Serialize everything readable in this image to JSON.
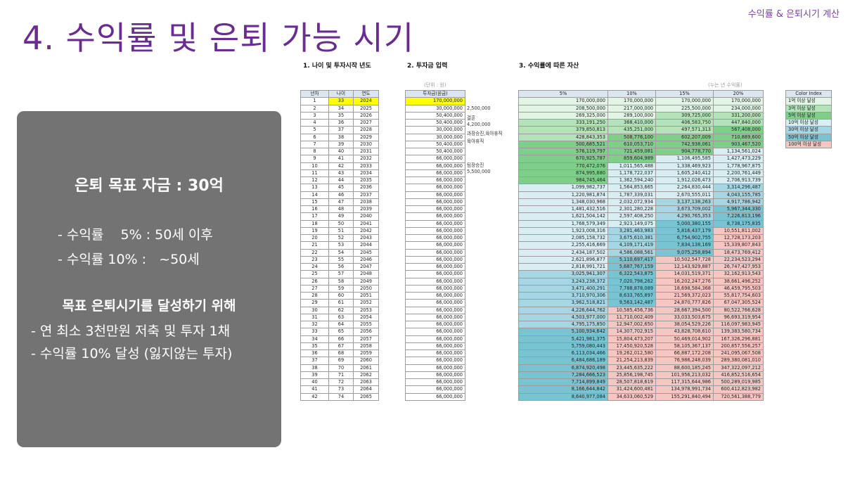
{
  "header": {
    "corner_label": "수익률 & 은퇴시기 계산",
    "title": "4. 수익률 및 은퇴 가능 시기"
  },
  "panel": {
    "goal": "은퇴 목표 자금 : 30억",
    "rate5": "- 수익률    5% : 50세 이후",
    "rate10": "- 수익률 10% :   ~50세",
    "subtitle": "목표 은퇴시기를 달성하기 위해",
    "bullet1": "- 연 최소 3천만원 저축 및 투자 1채",
    "bullet2": "- 수익률 10% 달성 (잃지않는 투자)"
  },
  "sections": {
    "s1": "1. 나이 및 투자시작 년도",
    "s2": "2. 투자금 입력",
    "s3": "3. 수익률에 따른 자산",
    "unit_left": "(단위 : 원)",
    "unit_right": "(누는 년 수익률)"
  },
  "colors": {
    "highlight": "#ffff00",
    "purple": "#6a2c91",
    "panel": "#737373"
  },
  "table": {
    "headers": {
      "year_no": "년차",
      "age": "나이",
      "year": "연도",
      "invest": "투자금(원금)",
      "r5": "5%",
      "r10": "10%",
      "r15": "15%",
      "r20": "20%"
    },
    "rows": [
      [
        "1",
        "33",
        "2024",
        "170,000,000",
        "170,000,000",
        "170,000,000",
        "170,000,000",
        "170,000,000"
      ],
      [
        "2",
        "34",
        "2025",
        "30,000,000",
        "208,500,000",
        "217,000,000",
        "225,500,000",
        "234,000,000"
      ],
      [
        "3",
        "35",
        "2026",
        "50,400,000",
        "269,325,000",
        "289,100,000",
        "309,725,000",
        "331,200,000"
      ],
      [
        "4",
        "36",
        "2027",
        "50,400,000",
        "333,191,250",
        "368,410,000",
        "406,583,750",
        "447,840,000"
      ],
      [
        "5",
        "37",
        "2028",
        "30,000,000",
        "379,850,813",
        "435,251,000",
        "497,571,313",
        "567,408,000"
      ],
      [
        "6",
        "38",
        "2029",
        "30,000,000",
        "428,843,353",
        "508,776,100",
        "602,207,009",
        "710,889,600"
      ],
      [
        "7",
        "39",
        "2030",
        "50,400,000",
        "500,685,521",
        "610,053,710",
        "742,938,061",
        "903,467,520"
      ],
      [
        "8",
        "40",
        "2031",
        "50,400,000",
        "576,119,797",
        "721,459,081",
        "904,778,770",
        "1,134,561,024"
      ],
      [
        "9",
        "41",
        "2032",
        "66,000,000",
        "670,925,787",
        "859,604,989",
        "1,106,495,585",
        "1,427,473,229"
      ],
      [
        "10",
        "42",
        "2033",
        "66,000,000",
        "770,472,076",
        "1,011,565,488",
        "1,338,469,923",
        "1,778,967,875"
      ],
      [
        "11",
        "43",
        "2034",
        "66,000,000",
        "874,995,680",
        "1,178,722,037",
        "1,605,240,412",
        "2,200,761,449"
      ],
      [
        "12",
        "44",
        "2035",
        "66,000,000",
        "984,745,464",
        "1,362,594,240",
        "1,912,026,473",
        "2,706,913,739"
      ],
      [
        "13",
        "45",
        "2036",
        "66,000,000",
        "1,099,982,737",
        "1,564,853,665",
        "2,264,830,444",
        "3,314,296,487"
      ],
      [
        "14",
        "46",
        "2037",
        "66,000,000",
        "1,220,981,874",
        "1,787,339,031",
        "2,670,555,011",
        "4,043,155,785"
      ],
      [
        "15",
        "47",
        "2038",
        "66,000,000",
        "1,348,030,968",
        "2,032,072,934",
        "3,137,138,263",
        "4,917,786,942"
      ],
      [
        "16",
        "48",
        "2039",
        "66,000,000",
        "1,481,432,516",
        "2,301,280,228",
        "3,673,709,002",
        "5,967,344,330"
      ],
      [
        "17",
        "49",
        "2040",
        "66,000,000",
        "1,621,504,142",
        "2,597,408,250",
        "4,290,765,353",
        "7,226,813,196"
      ],
      [
        "18",
        "50",
        "2041",
        "66,000,000",
        "1,768,579,349",
        "2,923,149,075",
        "5,000,380,155",
        "8,738,175,835"
      ],
      [
        "19",
        "51",
        "2042",
        "66,000,000",
        "1,923,008,316",
        "3,281,463,983",
        "5,816,437,179",
        "10,551,811,002"
      ],
      [
        "20",
        "52",
        "2043",
        "66,000,000",
        "2,085,158,732",
        "3,675,610,381",
        "6,754,902,755",
        "12,728,173,203"
      ],
      [
        "21",
        "53",
        "2044",
        "66,000,000",
        "2,255,416,669",
        "4,109,171,419",
        "7,834,138,169",
        "15,339,807,843"
      ],
      [
        "22",
        "54",
        "2045",
        "66,000,000",
        "2,434,187,502",
        "4,586,088,561",
        "9,075,258,894",
        "18,473,769,412"
      ],
      [
        "23",
        "55",
        "2046",
        "66,000,000",
        "2,621,896,877",
        "5,110,697,417",
        "10,502,547,728",
        "22,234,523,294"
      ],
      [
        "24",
        "56",
        "2047",
        "66,000,000",
        "2,818,991,721",
        "5,687,767,159",
        "12,143,929,887",
        "26,747,427,953"
      ],
      [
        "25",
        "57",
        "2048",
        "66,000,000",
        "3,025,941,307",
        "6,322,543,875",
        "14,031,519,371",
        "32,162,913,543"
      ],
      [
        "26",
        "58",
        "2049",
        "66,000,000",
        "3,243,238,372",
        "7,020,798,262",
        "16,202,247,276",
        "38,661,496,252"
      ],
      [
        "27",
        "59",
        "2050",
        "66,000,000",
        "3,471,400,291",
        "7,788,878,089",
        "18,698,584,368",
        "46,459,795,503"
      ],
      [
        "28",
        "60",
        "2051",
        "66,000,000",
        "3,710,970,306",
        "8,633,765,897",
        "21,569,372,023",
        "55,817,754,603"
      ],
      [
        "29",
        "61",
        "2052",
        "66,000,000",
        "3,962,518,821",
        "9,563,142,487",
        "24,870,777,826",
        "67,047,305,524"
      ],
      [
        "30",
        "62",
        "2053",
        "66,000,000",
        "4,226,644,762",
        "10,585,456,736",
        "28,667,394,500",
        "80,522,766,628"
      ],
      [
        "31",
        "63",
        "2054",
        "66,000,000",
        "4,503,977,000",
        "11,710,002,409",
        "33,033,503,675",
        "96,693,319,954"
      ],
      [
        "32",
        "64",
        "2055",
        "66,000,000",
        "4,795,175,850",
        "12,947,002,650",
        "38,054,529,226",
        "116,097,983,945"
      ],
      [
        "33",
        "65",
        "2056",
        "66,000,000",
        "5,100,934,642",
        "14,307,702,915",
        "43,828,708,610",
        "139,383,580,734"
      ],
      [
        "34",
        "66",
        "2057",
        "66,000,000",
        "5,421,981,375",
        "15,804,473,207",
        "50,469,014,902",
        "167,326,296,881"
      ],
      [
        "35",
        "67",
        "2058",
        "66,000,000",
        "5,759,080,443",
        "17,450,920,528",
        "58,105,367,137",
        "200,857,556,257"
      ],
      [
        "36",
        "68",
        "2059",
        "66,000,000",
        "6,113,034,466",
        "19,262,012,580",
        "66,887,172,208",
        "241,095,067,508"
      ],
      [
        "37",
        "69",
        "2060",
        "66,000,000",
        "6,484,686,189",
        "21,254,213,839",
        "76,986,248,039",
        "289,380,081,010"
      ],
      [
        "38",
        "70",
        "2061",
        "66,000,000",
        "6,874,920,498",
        "23,445,635,222",
        "88,600,185,245",
        "347,322,097,212"
      ],
      [
        "39",
        "71",
        "2062",
        "66,000,000",
        "7,284,666,523",
        "25,856,198,745",
        "101,956,213,032",
        "416,852,516,654"
      ],
      [
        "40",
        "72",
        "2063",
        "66,000,000",
        "7,714,899,849",
        "28,507,818,619",
        "117,315,644,986",
        "500,289,019,985"
      ],
      [
        "41",
        "73",
        "2064",
        "66,000,000",
        "8,166,644,842",
        "31,424,600,481",
        "134,978,991,734",
        "600,412,823,982"
      ],
      [
        "42",
        "74",
        "2065",
        "66,000,000",
        "8,640,977,084",
        "34,633,060,529",
        "155,291,840,494",
        "720,561,388,779"
      ]
    ],
    "memos": [
      {
        "row": 1,
        "text": "2,500,000"
      },
      {
        "row": 2,
        "text": "결혼"
      },
      {
        "row": 3,
        "text": "4,200,000"
      },
      {
        "row": 4,
        "text": "과장승진,육아휴직"
      },
      {
        "row": 5,
        "text": "육아휴직"
      },
      {
        "row": 8,
        "text": "팀장승진"
      },
      {
        "row": 9,
        "text": "5,500,000"
      }
    ]
  },
  "legend": {
    "header": "Color Index",
    "items": [
      {
        "label": "1억 이상 달성",
        "color": "#e2f5e4"
      },
      {
        "label": "3억 이상 달성",
        "color": "#b5e3b9"
      },
      {
        "label": "5억 이상 달성",
        "color": "#7fcf8a"
      },
      {
        "label": "10억 이상 달성",
        "color": "#d8eef3"
      },
      {
        "label": "30억 이상 달성",
        "color": "#a6d6e3"
      },
      {
        "label": "50억 이상 달성",
        "color": "#78c4d2"
      },
      {
        "label": "100억 이상 달성",
        "color": "#f6c6c3"
      }
    ]
  }
}
